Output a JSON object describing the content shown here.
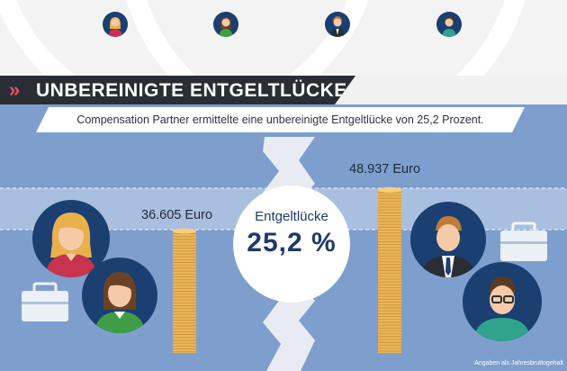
{
  "header": {
    "title": "UNBEREINIGTE ENTGELTLÜCKE",
    "subtitle": "Compensation Partner ermittelte eine unbereinigte Entgeltlücke von 25,2 Prozent."
  },
  "chart_data": {
    "type": "bar",
    "title": "UNBEREINIGTE ENTGELTLÜCKE",
    "categories": [
      "Frauen",
      "Männer"
    ],
    "values": [
      36605,
      48937
    ],
    "value_labels": [
      "36.605 Euro",
      "48.937 Euro"
    ],
    "unit": "Euro",
    "ylim": [
      0,
      50000
    ],
    "gap": {
      "label": "Entgeltlücke",
      "value_label": "25,2 %",
      "value": 25.2
    },
    "note": "Angaben als Jahresbruttogehalt",
    "grid": false,
    "legend": "none"
  },
  "colors": {
    "background_blue": "#7e9fcd",
    "navy": "#1a3f70",
    "coin_gold": "#eab65a",
    "accent_red": "#e4555c",
    "title_bar": "#2a2d33"
  },
  "icons": {
    "people_top": [
      "woman-avatar-icon",
      "woman-avatar-icon",
      "man-avatar-icon",
      "man-avatar-icon"
    ],
    "briefcase": "briefcase-icon",
    "coins": "coin-stack-icon"
  }
}
